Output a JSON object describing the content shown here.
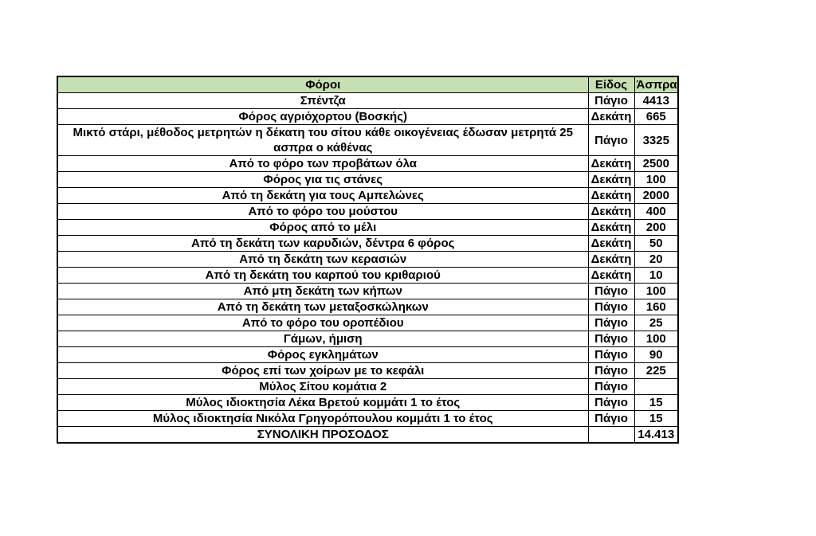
{
  "chart_data": {
    "type": "table",
    "title": "",
    "header_bg": "#C6E0B4",
    "border_color": "#000000",
    "text_color": "#000000",
    "columns": [
      "Φόροι",
      "Είδος",
      "Άσπρα"
    ],
    "rows": [
      [
        "Σπέντζα",
        "Πάγιο",
        "4413"
      ],
      [
        "Φόρος αγριόχορτου (Βοσκής)",
        "Δεκάτη",
        "665"
      ],
      [
        "Μικτό στάρι, μέθοδος μετρητών η δέκατη του σίτου κάθε οικογένειας έδωσαν μετρητά 25 ασπρα ο κάθένας",
        "Πάγιο",
        "3325"
      ],
      [
        "Από το φόρο των προβάτων όλα",
        "Δεκάτη",
        "2500"
      ],
      [
        "Φόρος για τις στάνες",
        "Δεκάτη",
        "100"
      ],
      [
        "Από τη δεκάτη για τους Αμπελώνες",
        "Δεκάτη",
        "2000"
      ],
      [
        "Από το φόρο του μούστου",
        "Δεκάτη",
        "400"
      ],
      [
        "Φόρος από το μέλι",
        "Δεκάτη",
        "200"
      ],
      [
        "Από τη δεκάτη των καρυδιών, δέντρα 6 φόρος",
        "Δεκάτη",
        "50"
      ],
      [
        "Από τη δεκάτη των κερασιών",
        "Δεκάτη",
        "20"
      ],
      [
        "Από τη δεκάτη του καρπού του κριθαριού",
        "Δεκάτη",
        "10"
      ],
      [
        "Από μτη δεκάτη των κήπων",
        "Πάγιο",
        "100"
      ],
      [
        "Από τη δεκάτη των μεταξοσκώληκων",
        "Πάγιο",
        "160"
      ],
      [
        "Από το φόρο του οροπέδιου",
        "Πάγιο",
        "25"
      ],
      [
        "Γάμων, ήμιση",
        "Πάγιο",
        "100"
      ],
      [
        "Φόρος εγκλημάτων",
        "Πάγιο",
        "90"
      ],
      [
        "Φόρος επί των χοίρων με το κεφάλι",
        "Πάγιο",
        "225"
      ],
      [
        "Μύλος Σίτου κομάτια 2",
        "Πάγιο",
        ""
      ],
      [
        "Μύλος ιδιοκτησία Λέκα Βρετού κομμάτι 1 το έτος",
        "Πάγιο",
        "15"
      ],
      [
        "Μύλος ιδιοκτησία Νικόλα Γρηγορόπουλου κομμάτι 1 το έτος",
        "Πάγιο",
        "15"
      ]
    ],
    "total_row": [
      "ΣΥΝΟΛΙΚΗ ΠΡΟΣΟΔΟΣ",
      "",
      "14.413"
    ]
  }
}
